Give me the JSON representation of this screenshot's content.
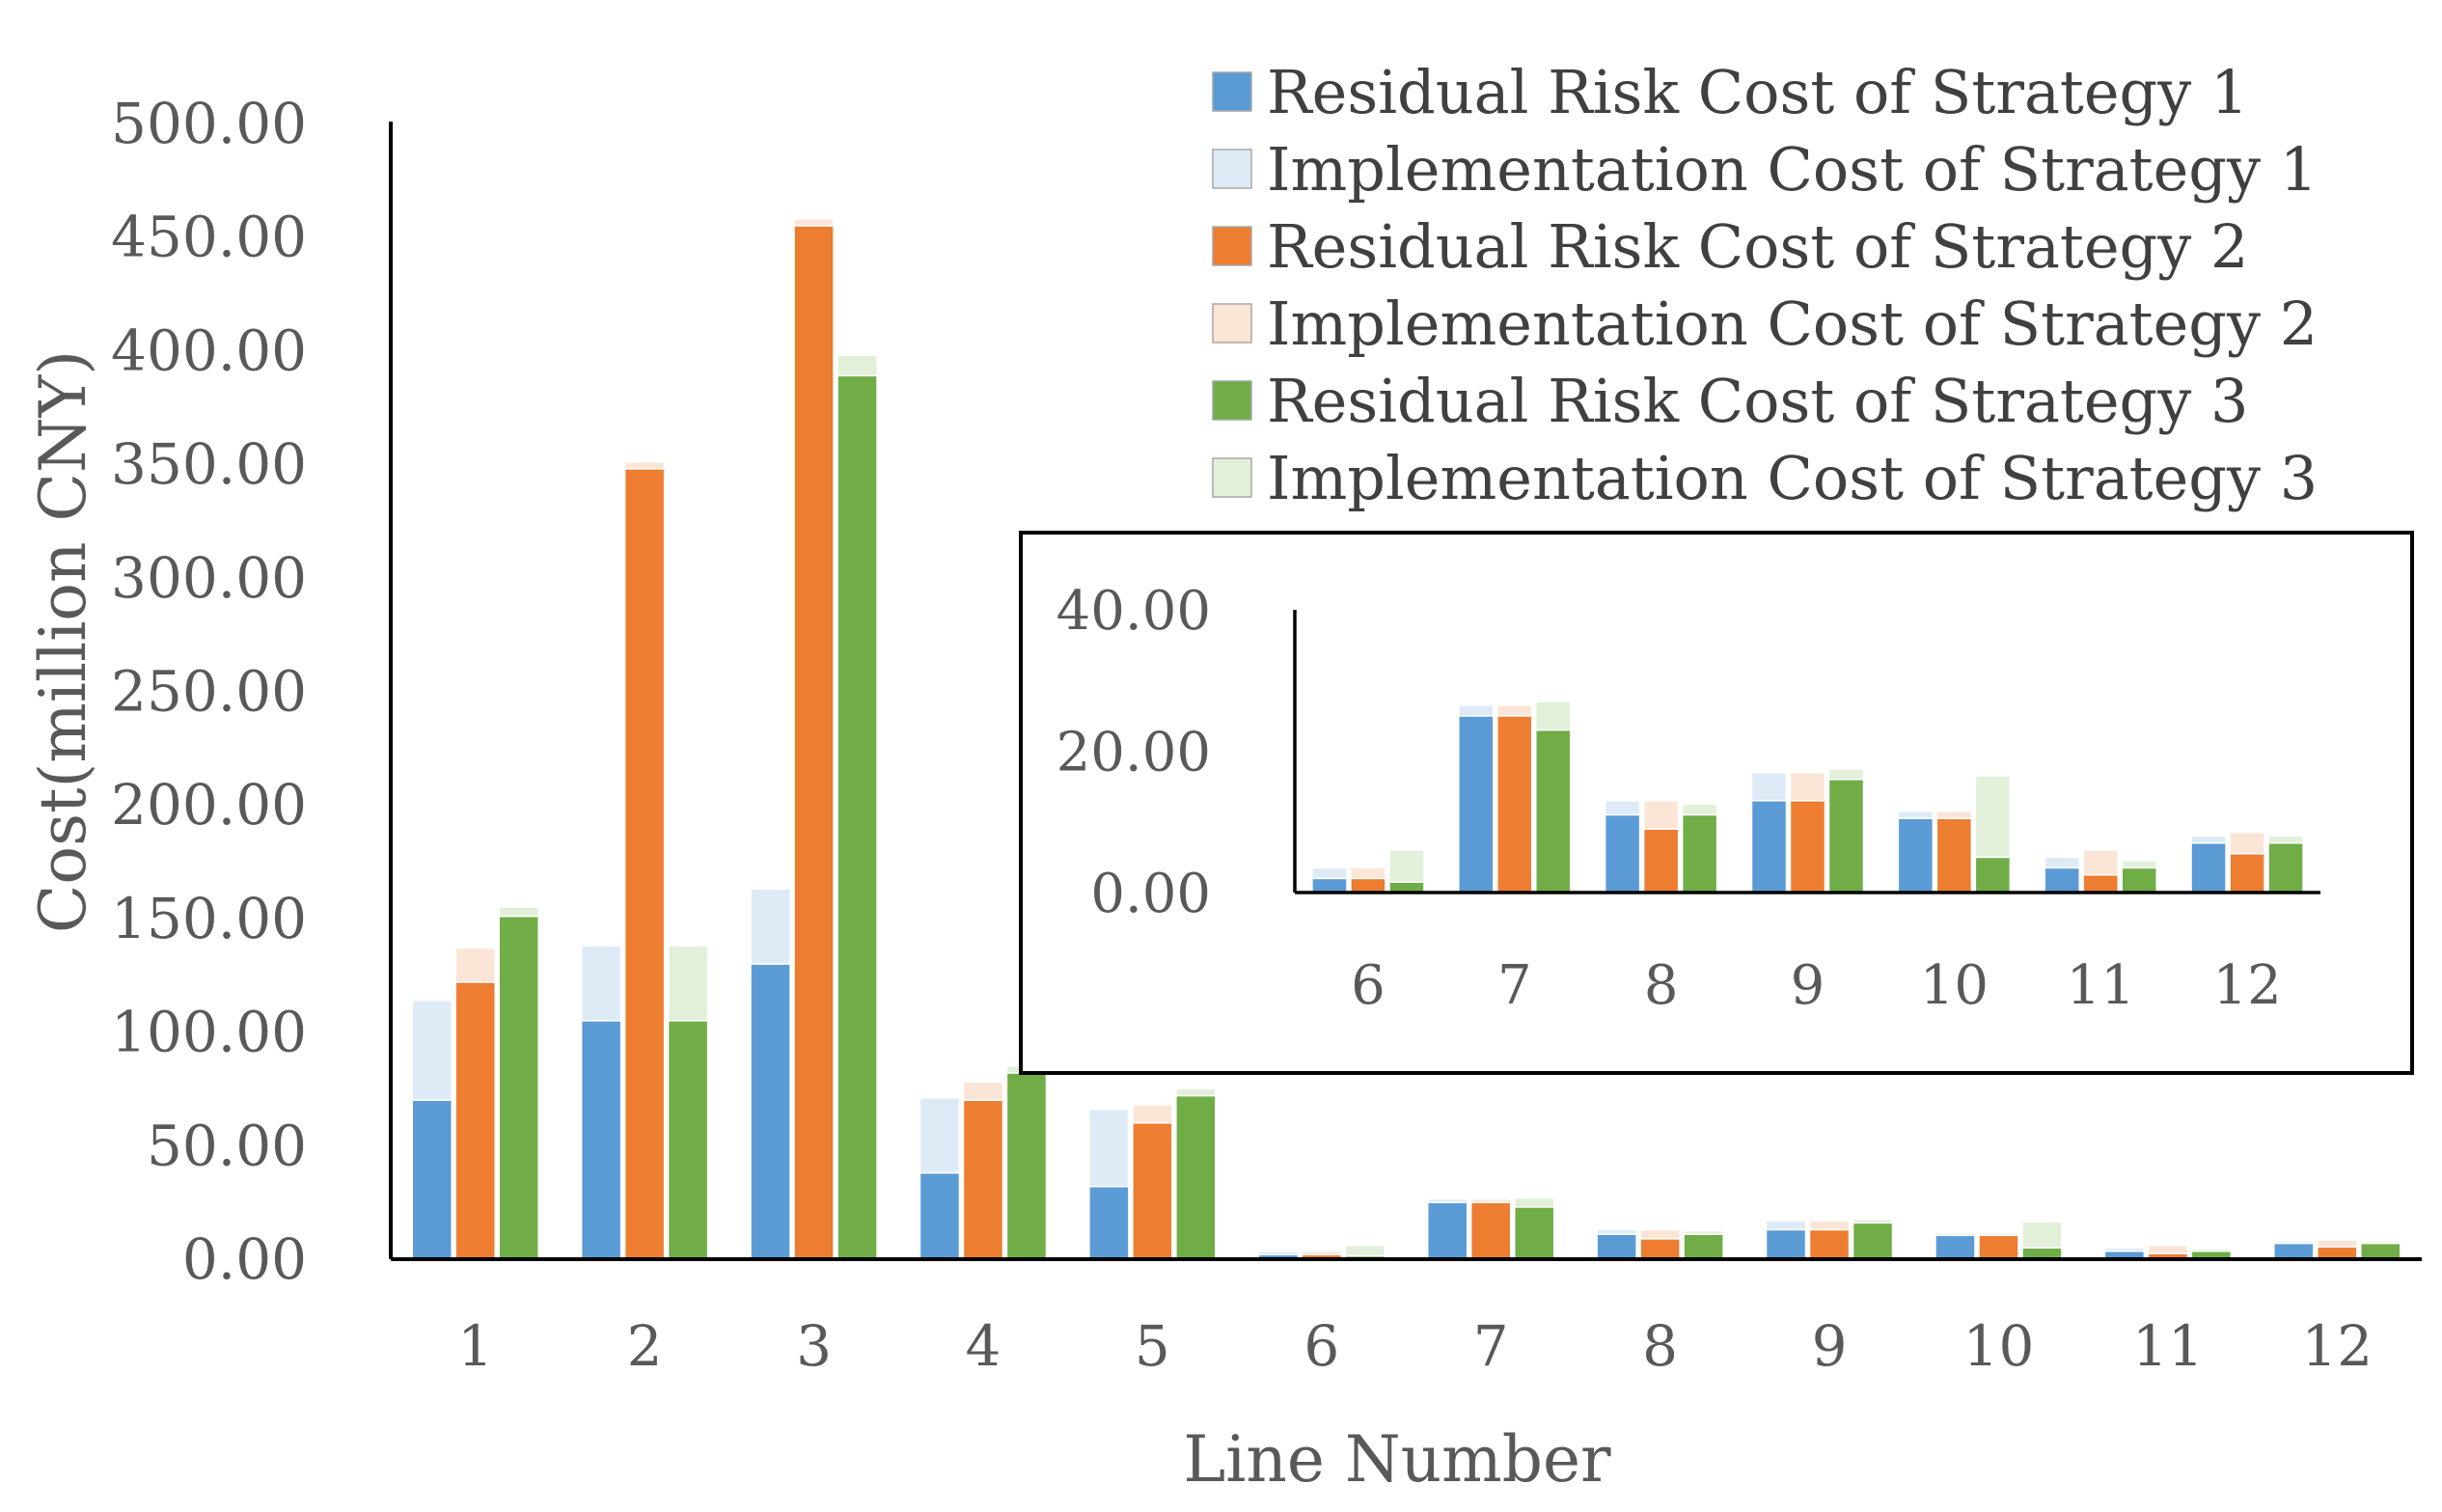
{
  "chart_data": {
    "type": "bar",
    "stacked_grouped": true,
    "xlabel": "Line Number",
    "ylabel": "Cost(million CNY)",
    "ylim": [
      0,
      500
    ],
    "y_ticks": [
      "500.00",
      "450.00",
      "400.00",
      "350.00",
      "300.00",
      "250.00",
      "200.00",
      "150.00",
      "100.00",
      "50.00",
      "0.00"
    ],
    "y_tick_values": [
      500,
      450,
      400,
      350,
      300,
      250,
      200,
      150,
      100,
      50,
      0
    ],
    "categories": [
      "1",
      "2",
      "3",
      "4",
      "5",
      "6",
      "7",
      "8",
      "9",
      "10",
      "11",
      "12"
    ],
    "strategies": [
      {
        "residual_name": "Residual Risk Cost of Strategy 1",
        "implementation_name": "Implementation Cost of Strategy 1",
        "residual_color": "#5b9bd5",
        "implementation_color": "#deebf7",
        "residual": [
          70,
          105,
          130,
          38,
          32,
          2,
          25,
          11,
          13,
          10.5,
          3.5,
          7
        ],
        "implementation": [
          44,
          33,
          33,
          33,
          34,
          1.5,
          1.5,
          2,
          4,
          1,
          1.5,
          1
        ]
      },
      {
        "residual_name": "Residual Risk Cost of Strategy 2",
        "implementation_name": "Implementation Cost of Strategy 2",
        "residual_color": "#ed7d31",
        "implementation_color": "#fbe5d6",
        "residual": [
          122,
          348,
          455,
          70,
          60,
          2,
          25,
          9,
          13,
          10.5,
          2.5,
          5.5
        ],
        "implementation": [
          15,
          3,
          3,
          8,
          8,
          1.5,
          1.5,
          4,
          4,
          1,
          3.5,
          3
        ]
      },
      {
        "residual_name": "Residual Risk Cost of Strategy 3",
        "implementation_name": "Implementation Cost of Strategy 3",
        "residual_color": "#70ad47",
        "implementation_color": "#e2f0d9",
        "residual": [
          151,
          105,
          389,
          82,
          72,
          1.5,
          23,
          11,
          16,
          5,
          3.5,
          7
        ],
        "implementation": [
          4,
          33,
          9,
          3,
          3,
          4.5,
          4,
          1.5,
          1.5,
          11.5,
          1,
          1
        ]
      }
    ],
    "legend_position": "top-right",
    "grid": false,
    "inset": {
      "categories": [
        "6",
        "7",
        "8",
        "9",
        "10",
        "11",
        "12"
      ],
      "ylim": [
        0,
        40
      ],
      "y_ticks": [
        "40.00",
        "20.00",
        "0.00"
      ],
      "y_tick_values": [
        40,
        20,
        0
      ]
    }
  }
}
